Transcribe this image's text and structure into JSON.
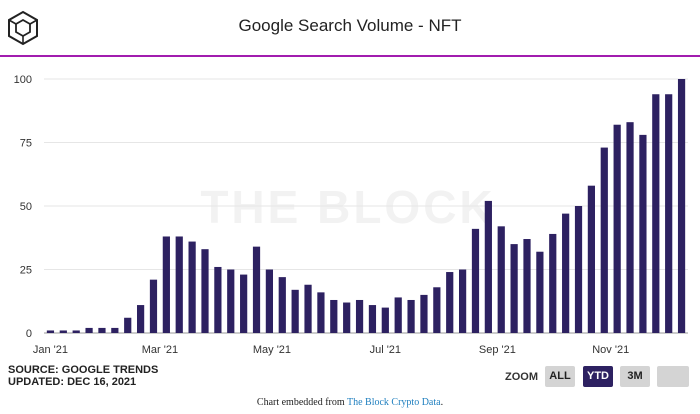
{
  "header": {
    "title": "Google Search Volume - NFT",
    "rule_color": "#a21caf",
    "logo_icon": "block-cube-logo-icon"
  },
  "watermark": "THE BLOCK",
  "footer": {
    "source": "SOURCE: GOOGLE TRENDS",
    "updated": "UPDATED: DEC 16, 2021"
  },
  "zoom": {
    "label": "ZOOM",
    "buttons": [
      "ALL",
      "YTD",
      "3M"
    ],
    "selected": "YTD",
    "selected_color": "#2d2161"
  },
  "embed": {
    "prefix": "Chart embedded from",
    "link_text": "The Block Crypto Data",
    "suffix": "."
  },
  "chart_data": {
    "type": "bar",
    "color": "#2d2161",
    "grid": true,
    "ylim": [
      0,
      100
    ],
    "yticks": [
      0,
      25,
      50,
      75,
      100
    ],
    "xticks": [
      {
        "label": "Jan '21",
        "index": 0
      },
      {
        "label": "Mar '21",
        "index": 8.5
      },
      {
        "label": "May '21",
        "index": 17.2
      },
      {
        "label": "Jul '21",
        "index": 26
      },
      {
        "label": "Sep '21",
        "index": 34.7
      },
      {
        "label": "Nov '21",
        "index": 43.5
      }
    ],
    "values": [
      1,
      1,
      1,
      2,
      2,
      2,
      6,
      11,
      21,
      38,
      38,
      36,
      33,
      26,
      25,
      23,
      34,
      25,
      22,
      17,
      19,
      16,
      13,
      12,
      13,
      11,
      10,
      14,
      13,
      15,
      18,
      24,
      25,
      41,
      52,
      42,
      35,
      37,
      32,
      39,
      47,
      50,
      58,
      73,
      82,
      83,
      78,
      94,
      94,
      100
    ]
  }
}
